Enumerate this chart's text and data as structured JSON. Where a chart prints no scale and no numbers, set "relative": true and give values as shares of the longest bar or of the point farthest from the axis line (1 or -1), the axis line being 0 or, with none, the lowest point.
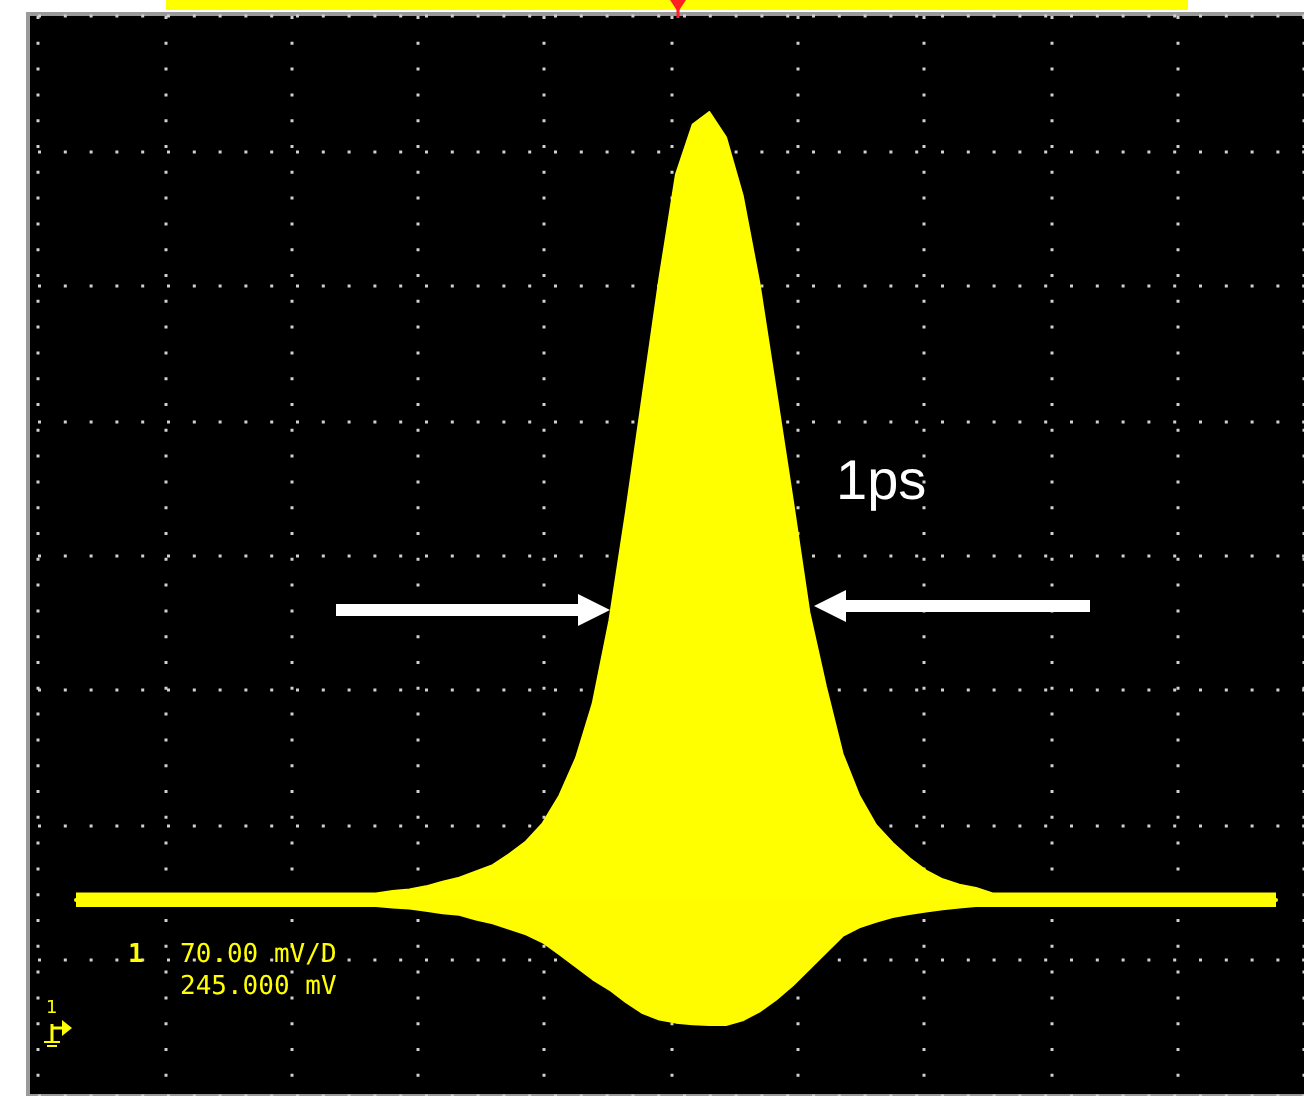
{
  "chart_data": {
    "type": "area",
    "relative": true,
    "grid": true,
    "annotations": [
      "1ps",
      "1",
      "70.00 mV/D",
      "245.000 mV",
      "1"
    ],
    "categories": [
      null,
      null,
      null,
      null,
      null,
      null,
      null,
      null,
      null,
      null,
      null,
      null,
      null,
      null,
      null,
      null,
      null,
      null,
      null,
      null,
      null,
      null,
      null,
      null,
      null,
      null,
      null,
      null,
      null,
      null,
      null,
      null,
      null,
      null,
      null,
      null,
      null,
      null,
      null,
      null,
      null,
      null,
      null,
      null,
      null,
      null,
      null,
      null,
      null,
      null,
      null,
      null,
      null,
      null,
      null,
      null,
      null,
      null,
      null,
      null,
      null,
      null,
      null,
      null,
      null,
      null,
      null,
      null,
      null,
      null,
      null,
      null,
      null
    ],
    "series": [
      {
        "color": "#ffff00",
        "values": [
          0.008,
          0.008,
          0.008,
          0.008,
          0.008,
          0.008,
          0.008,
          0.008,
          0.008,
          0.008,
          0.008,
          0.008,
          0.008,
          0.008,
          0.008,
          0.008,
          0.008,
          0.008,
          0.008,
          0.011,
          0.013,
          0.017,
          0.023,
          0.028,
          0.036,
          0.044,
          0.058,
          0.074,
          0.097,
          0.132,
          0.18,
          0.249,
          0.354,
          0.492,
          0.64,
          0.788,
          0.921,
          0.984,
          1.0,
          0.968,
          0.894,
          0.783,
          0.646,
          0.508,
          0.365,
          0.27,
          0.185,
          0.132,
          0.095,
          0.072,
          0.053,
          0.037,
          0.026,
          0.019,
          0.015,
          0.008,
          0.008,
          0.008,
          0.008,
          0.008,
          0.008,
          0.008,
          0.008,
          0.008,
          0.008,
          0.008,
          0.008,
          0.008,
          0.008,
          0.008,
          0.008,
          0.008,
          0.008
        ]
      },
      {
        "color": "#fffc00",
        "values": [
          -0.008,
          -0.008,
          -0.008,
          -0.008,
          -0.008,
          -0.008,
          -0.008,
          -0.008,
          -0.008,
          -0.008,
          -0.008,
          -0.008,
          -0.008,
          -0.008,
          -0.008,
          -0.008,
          -0.008,
          -0.008,
          -0.008,
          -0.01,
          -0.011,
          -0.014,
          -0.017,
          -0.019,
          -0.025,
          -0.03,
          -0.037,
          -0.044,
          -0.054,
          -0.069,
          -0.085,
          -0.101,
          -0.114,
          -0.13,
          -0.144,
          -0.152,
          -0.156,
          -0.158,
          -0.159,
          -0.159,
          -0.153,
          -0.142,
          -0.127,
          -0.109,
          -0.088,
          -0.067,
          -0.046,
          -0.035,
          -0.028,
          -0.022,
          -0.018,
          -0.015,
          -0.012,
          -0.01,
          -0.008,
          -0.008,
          -0.008,
          -0.008,
          -0.008,
          -0.008,
          -0.008,
          -0.008,
          -0.008,
          -0.008,
          -0.008,
          -0.008,
          -0.008,
          -0.008,
          -0.008,
          -0.008,
          -0.008,
          -0.008,
          -0.008
        ]
      }
    ]
  }
}
